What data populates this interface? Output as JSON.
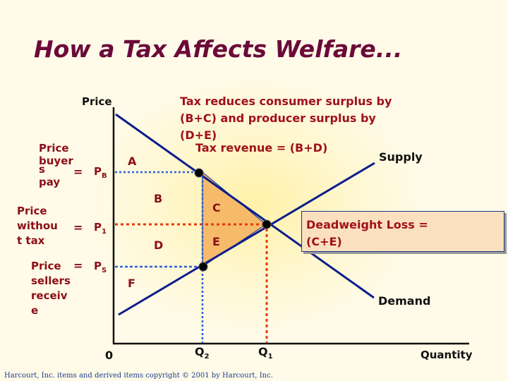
{
  "title": "How a Tax Affects Welfare...",
  "axes": {
    "y_label": "Price",
    "x_label": "Quantity",
    "origin": "0"
  },
  "curves": {
    "supply": "Supply",
    "demand": "Demand"
  },
  "areas": {
    "a": "A",
    "b": "B",
    "c": "C",
    "d": "D",
    "e": "E",
    "f": "F"
  },
  "price_levels": {
    "buyers": {
      "label_line1": "Price",
      "label_line2": "buyer",
      "label_line3": "s",
      "label_line4": "pay",
      "equals": "=",
      "symbol": "P",
      "sub": "B"
    },
    "no_tax": {
      "label_line1": "Price",
      "label_line2": "withou",
      "label_line3": "t tax",
      "equals": "=",
      "symbol": "P",
      "sub": "1"
    },
    "sellers": {
      "label_line1": "Price",
      "label_line2": "sellers",
      "label_line3": "receiv",
      "label_line4": "e",
      "equals": "=",
      "symbol": "P",
      "sub": "S"
    }
  },
  "quantities": {
    "q2": {
      "symbol": "Q",
      "sub": "2"
    },
    "q1": {
      "symbol": "Q",
      "sub": "1"
    }
  },
  "notes": {
    "surplus_line1": "Tax reduces consumer surplus by",
    "surplus_line2": "(B+C) and producer surplus by",
    "surplus_line3": "(D+E)",
    "revenue": "Tax revenue = (B+D)"
  },
  "deadweight": {
    "line1": "Deadweight Loss =",
    "line2": "(C+E)"
  },
  "footer": "Harcourt, Inc. items and derived items copyright © 2001 by Harcourt, Inc.",
  "colors": {
    "curve": "#0c1d8c",
    "triangle_fill": "#f5bb6a",
    "blue_dots": "#2a5fe0",
    "red_dots": "#e8380a",
    "title": "#6b0a3a",
    "label": "#8b0f18"
  }
}
